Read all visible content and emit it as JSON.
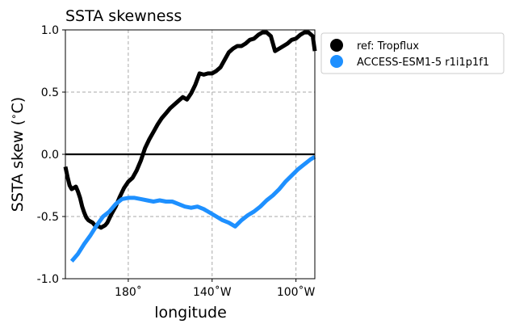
{
  "chart_data": {
    "type": "line",
    "title": "SSTA skewness",
    "xlabel": "longitude",
    "ylabel": "SSTA skew ($^\\circ$C)",
    "ylabel_main": "SSTA skew (",
    "ylabel_unit": "C)",
    "ylim": [
      -1.0,
      1.0
    ],
    "xlim": [
      150,
      269
    ],
    "grid": true,
    "legend_position": "outside-top-right",
    "xticks": [
      {
        "value": 180,
        "label": "180˚"
      },
      {
        "value": 220,
        "label": "140˚W"
      },
      {
        "value": 260,
        "label": "100˚W"
      }
    ],
    "yticks": [
      {
        "value": 1.0,
        "label": "1.0"
      },
      {
        "value": 0.5,
        "label": "0.5"
      },
      {
        "value": 0.0,
        "label": "0.0"
      },
      {
        "value": -0.5,
        "label": "-0.5"
      },
      {
        "value": -1.0,
        "label": "-1.0"
      }
    ],
    "series": [
      {
        "name": "ref: Tropflux",
        "color": "#000000",
        "x": [
          150,
          151,
          152,
          153,
          154,
          155,
          156,
          157,
          158,
          159,
          160,
          161,
          162,
          163,
          164,
          165,
          166,
          167,
          168,
          169,
          170,
          172,
          174,
          176,
          178,
          180,
          182,
          184,
          186,
          188,
          190,
          192,
          194,
          196,
          198,
          200,
          202,
          204,
          206,
          208,
          210,
          212,
          214,
          216,
          218,
          220,
          222,
          224,
          226,
          228,
          230,
          232,
          234,
          236,
          238,
          240,
          242,
          244,
          246,
          248,
          250,
          252,
          254,
          256,
          258,
          260,
          262,
          264,
          266,
          268,
          269
        ],
        "y": [
          -0.1,
          -0.18,
          -0.25,
          -0.28,
          -0.27,
          -0.26,
          -0.3,
          -0.35,
          -0.42,
          -0.47,
          -0.51,
          -0.53,
          -0.54,
          -0.55,
          -0.57,
          -0.58,
          -0.58,
          -0.59,
          -0.58,
          -0.57,
          -0.55,
          -0.48,
          -0.42,
          -0.34,
          -0.27,
          -0.22,
          -0.19,
          -0.13,
          -0.05,
          0.05,
          0.12,
          0.18,
          0.24,
          0.29,
          0.33,
          0.37,
          0.4,
          0.43,
          0.46,
          0.44,
          0.49,
          0.56,
          0.65,
          0.64,
          0.65,
          0.65,
          0.67,
          0.7,
          0.76,
          0.82,
          0.85,
          0.87,
          0.87,
          0.89,
          0.92,
          0.93,
          0.96,
          0.98,
          0.98,
          0.95,
          0.83,
          0.85,
          0.87,
          0.89,
          0.92,
          0.93,
          0.96,
          0.98,
          0.98,
          0.95,
          0.83
        ],
        "x_fix": [
          150,
          151,
          152,
          153,
          154,
          155,
          156,
          157,
          158,
          159,
          160,
          161,
          162,
          163,
          164,
          165,
          166,
          167,
          168,
          169,
          170,
          172,
          174,
          176,
          178,
          180,
          182,
          184,
          186,
          188,
          190,
          192,
          194,
          196,
          198,
          200,
          202,
          204,
          206,
          208,
          210,
          212,
          214,
          216,
          218,
          220,
          222,
          224,
          226,
          228,
          230,
          232,
          234,
          236,
          238,
          240,
          242,
          244,
          246,
          248,
          250,
          252,
          254,
          256,
          258,
          260,
          262,
          264,
          266,
          268,
          269
        ]
      },
      {
        "name": "ACCESS-ESM1-5 r1i1p1f1",
        "color": "#1e90ff",
        "x": [
          153,
          156,
          159,
          162,
          165,
          168,
          171,
          174,
          177,
          180,
          183,
          186,
          189,
          192,
          195,
          198,
          201,
          204,
          207,
          210,
          213,
          216,
          219,
          222,
          225,
          228,
          231,
          234,
          237,
          240,
          243,
          246,
          249,
          252,
          255,
          258,
          261,
          264,
          267,
          269
        ],
        "y": [
          -0.86,
          -0.8,
          -0.72,
          -0.65,
          -0.57,
          -0.5,
          -0.46,
          -0.4,
          -0.36,
          -0.35,
          -0.35,
          -0.36,
          -0.37,
          -0.38,
          -0.37,
          -0.38,
          -0.38,
          -0.4,
          -0.42,
          -0.43,
          -0.42,
          -0.44,
          -0.47,
          -0.5,
          -0.53,
          -0.55,
          -0.58,
          -0.53,
          -0.49,
          -0.46,
          -0.42,
          -0.37,
          -0.33,
          -0.28,
          -0.22,
          -0.17,
          -0.12,
          -0.08,
          -0.04,
          -0.02
        ]
      }
    ]
  }
}
